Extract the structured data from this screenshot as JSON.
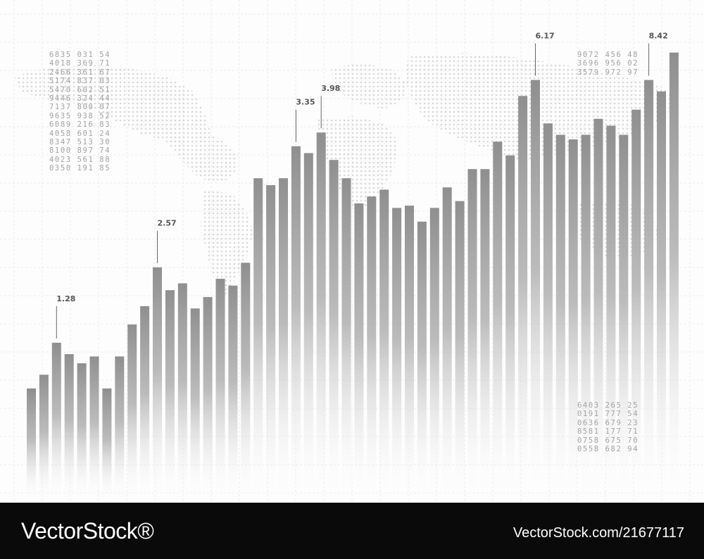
{
  "chart_data": {
    "type": "bar",
    "values": [
      5.0,
      5.6,
      7.0,
      6.5,
      6.1,
      6.4,
      5.0,
      6.4,
      7.8,
      8.6,
      10.3,
      9.3,
      9.6,
      8.5,
      9.0,
      9.8,
      9.5,
      10.5,
      14.2,
      13.9,
      14.2,
      15.6,
      15.3,
      16.2,
      15.0,
      14.2,
      13.1,
      13.4,
      13.7,
      12.9,
      13.0,
      12.3,
      12.9,
      13.8,
      13.2,
      14.6,
      14.6,
      15.8,
      15.2,
      17.8,
      18.5,
      16.6,
      16.1,
      15.9,
      16.1,
      16.8,
      16.5,
      16.1,
      17.2,
      18.5,
      18.0,
      19.7
    ],
    "callouts": [
      {
        "bar": 2,
        "label": "1.28"
      },
      {
        "bar": 10,
        "label": "2.57"
      },
      {
        "bar": 21,
        "label": "3.35"
      },
      {
        "bar": 23,
        "label": "3.98"
      },
      {
        "bar": 40,
        "label": "6.17"
      },
      {
        "bar": 49,
        "label": "8.42"
      }
    ],
    "ylim": [
      0,
      22
    ],
    "grid": true,
    "bar_color": "#8f8f8f"
  },
  "number_blocks": {
    "top_left": [
      "6835 031 54",
      "4018 369 71",
      "2466 361 67",
      "5174 837 03",
      "5470 602 51",
      "9446 324 44",
      "7137 800 07",
      "9635 938 52",
      "6089 216 83",
      "4058 601 24",
      "8347 513 30",
      "8100 897 74",
      "4023 561 88",
      "0350 191 85"
    ],
    "top_right": [
      "9072 456 48",
      "3696 956 02",
      "3579 972 97"
    ],
    "bottom_right": [
      "6403 265 25",
      "0191 777 54",
      "0636 679 23",
      "8581 177 71",
      "0758 675 70",
      "0558 682 94"
    ]
  },
  "footer": {
    "logo": "VectorStock®",
    "image_id": "VectorStock.com/21677117"
  }
}
